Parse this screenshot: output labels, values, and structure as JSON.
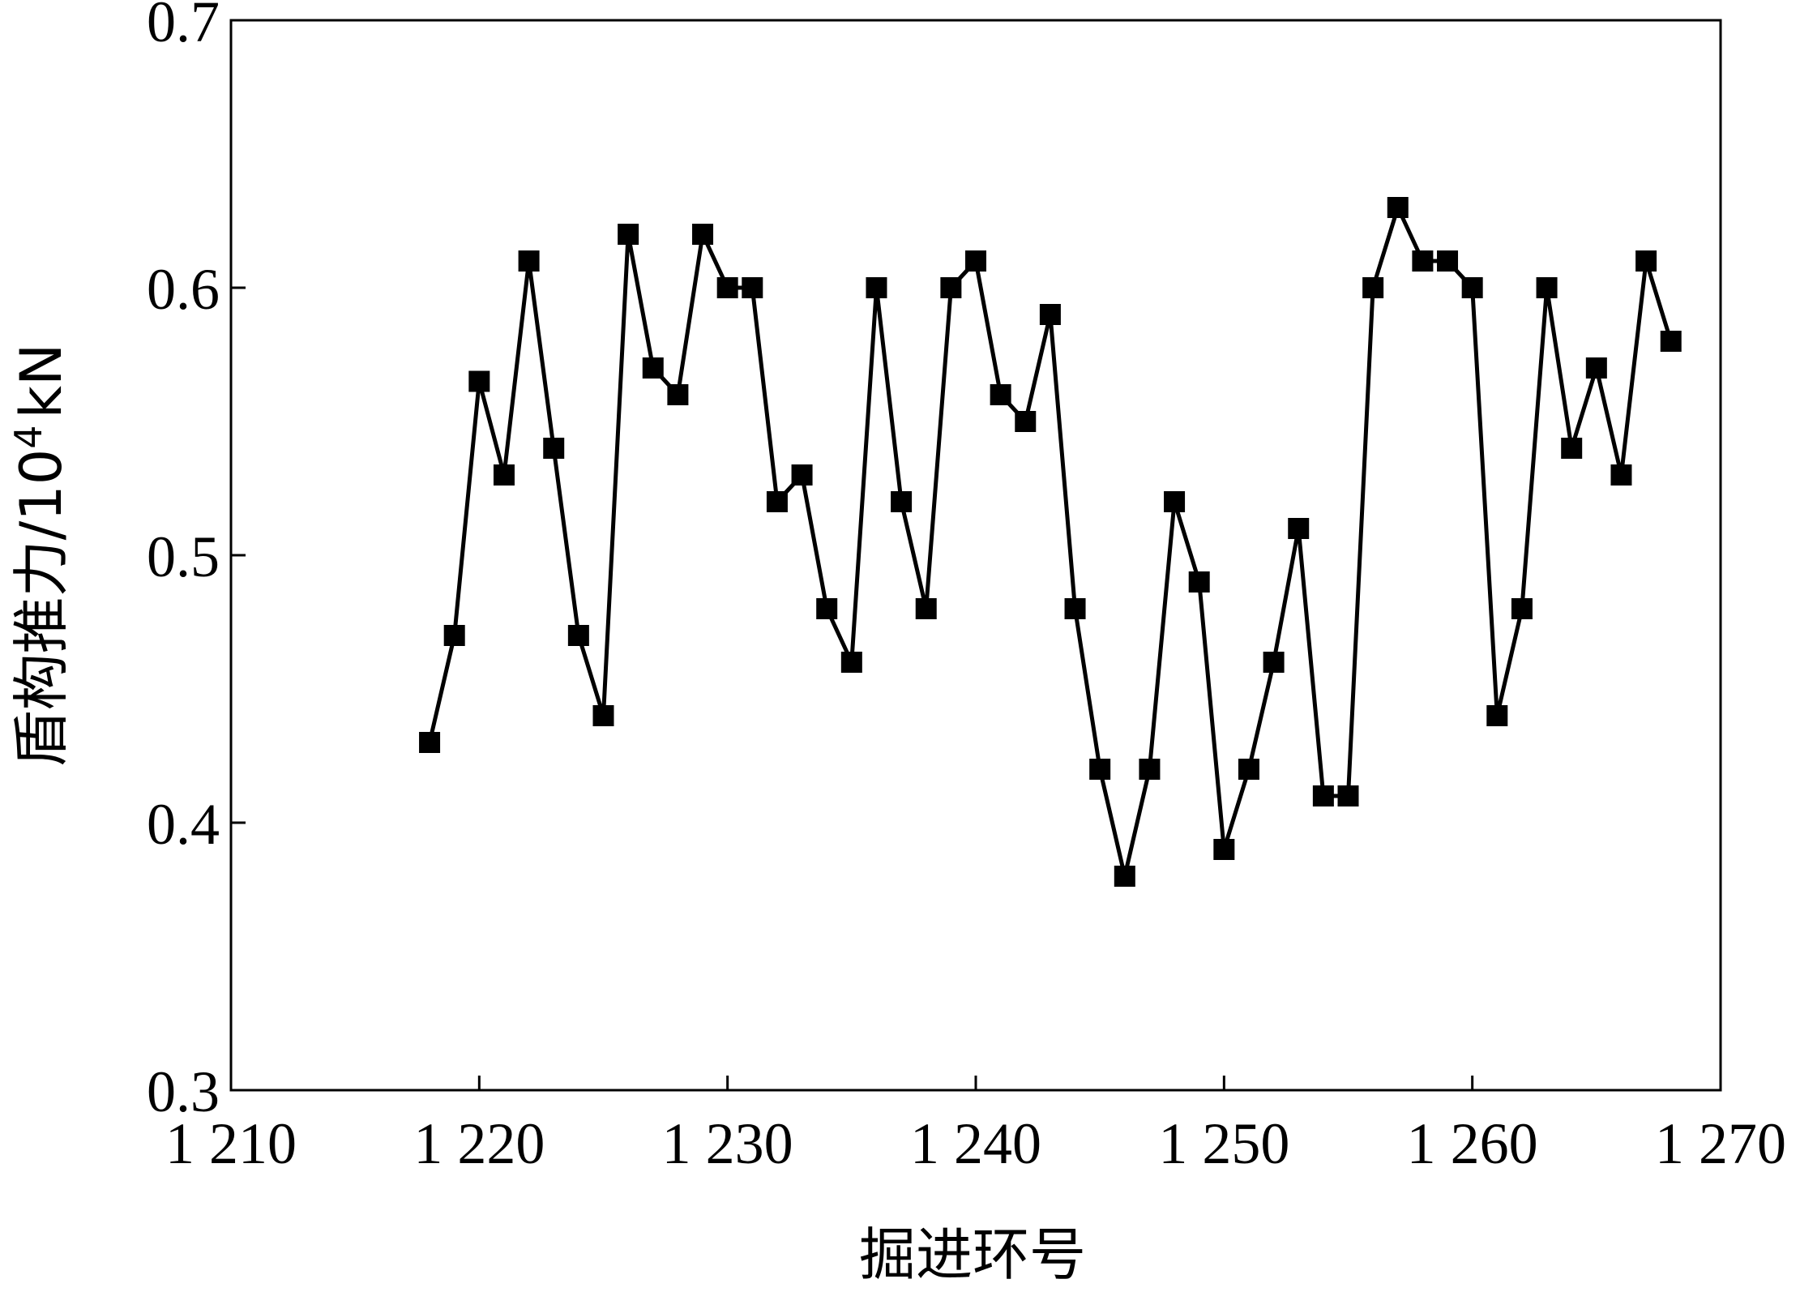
{
  "chart_data": {
    "type": "line",
    "xlabel": "掘进环号",
    "ylabel_prefix": "盾构推力/10",
    "ylabel_exponent": "4",
    "ylabel_unit": "kN",
    "xlim": [
      1210,
      1270
    ],
    "ylim": [
      0.3,
      0.7
    ],
    "x_ticks": [
      1210,
      1220,
      1230,
      1240,
      1250,
      1260,
      1270
    ],
    "x_tick_labels": [
      "1 210",
      "1 220",
      "1 230",
      "1 240",
      "1 250",
      "1 260",
      "1 270"
    ],
    "y_ticks": [
      0.3,
      0.4,
      0.5,
      0.6,
      0.7
    ],
    "y_tick_labels": [
      "0.3",
      "0.4",
      "0.5",
      "0.6",
      "0.7"
    ],
    "grid": false,
    "marker": "square",
    "color": "#000000",
    "series": [
      {
        "x": [
          1218,
          1219,
          1220,
          1221,
          1222,
          1223,
          1224,
          1225,
          1226,
          1227,
          1228,
          1229,
          1230,
          1231,
          1232,
          1233,
          1234,
          1235,
          1236,
          1237,
          1238,
          1239,
          1240,
          1241,
          1242,
          1243,
          1244,
          1245,
          1246,
          1247,
          1248,
          1249,
          1250,
          1251,
          1252,
          1253,
          1254,
          1255,
          1256,
          1257,
          1258,
          1259,
          1260,
          1261,
          1262,
          1263,
          1264,
          1265,
          1266,
          1267,
          1268
        ],
        "y": [
          0.43,
          0.47,
          0.565,
          0.53,
          0.61,
          0.54,
          0.47,
          0.44,
          0.62,
          0.57,
          0.56,
          0.62,
          0.6,
          0.6,
          0.52,
          0.53,
          0.48,
          0.46,
          0.6,
          0.52,
          0.48,
          0.6,
          0.61,
          0.56,
          0.55,
          0.59,
          0.48,
          0.42,
          0.38,
          0.42,
          0.52,
          0.49,
          0.39,
          0.42,
          0.46,
          0.51,
          0.41,
          0.41,
          0.6,
          0.63,
          0.61,
          0.61,
          0.6,
          0.44,
          0.48,
          0.6,
          0.54,
          0.57,
          0.53,
          0.61,
          0.58
        ]
      }
    ]
  }
}
